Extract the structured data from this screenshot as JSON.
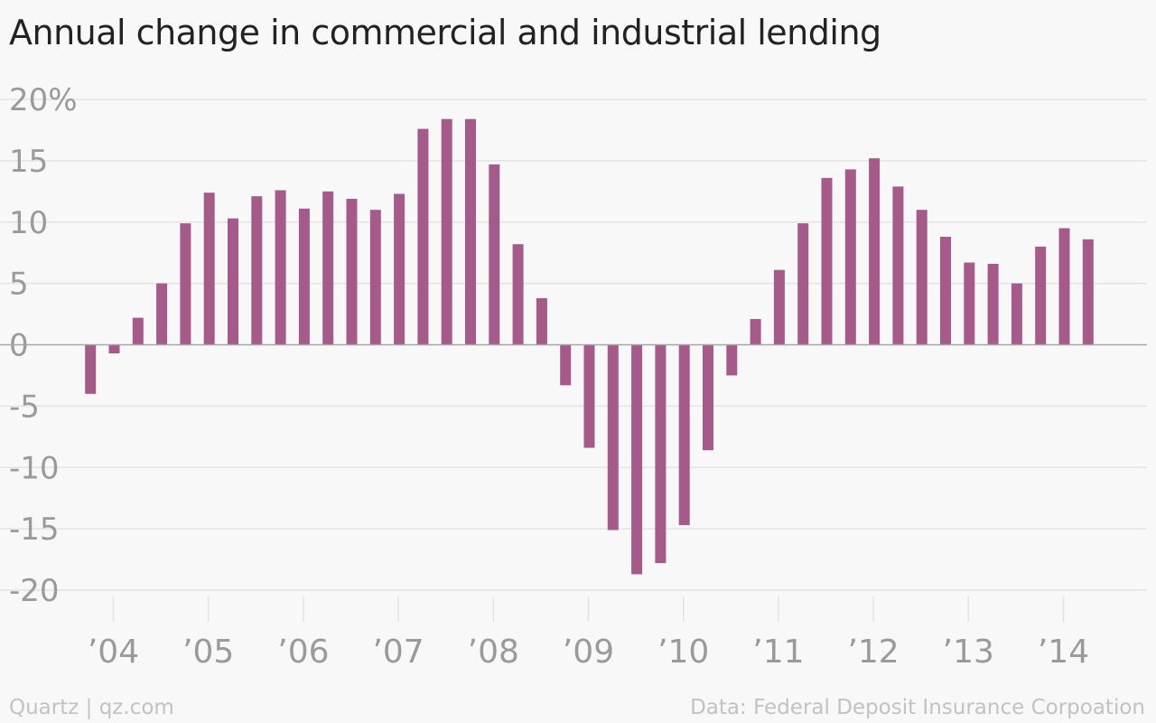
{
  "title": "Annual change in commercial and industrial lending",
  "footer": {
    "credit": "Quartz | qz.com",
    "source": "Data: Federal Deposit Insurance Corpoation"
  },
  "colors": {
    "bar": "#a55a8a",
    "grid": "#e3e3e3",
    "zero_line": "#a6a6a6",
    "tick_text": "#9a9a9a",
    "background": "#f8f8f8"
  },
  "chart_data": {
    "type": "bar",
    "title": "Annual change in commercial and industrial lending",
    "xlabel": "",
    "ylabel": "",
    "ylim": [
      -20,
      20
    ],
    "yticks": [
      20,
      15,
      10,
      5,
      0,
      -5,
      -10,
      -15,
      -20
    ],
    "ytick_labels": [
      "20%",
      "15",
      "10",
      "5",
      "0",
      "-5",
      "-10",
      "-15",
      "-20"
    ],
    "xticks": [
      "’04",
      "’05",
      "’06",
      "’07",
      "’08",
      "’09",
      "’10",
      "’11",
      "’12",
      "’13",
      "’14"
    ],
    "grid": true,
    "values_start": "2004 Q1",
    "frequency": "quarterly",
    "values": [
      -4.0,
      -0.7,
      2.2,
      5.0,
      9.9,
      12.4,
      10.3,
      12.1,
      12.6,
      11.1,
      12.5,
      11.9,
      11.0,
      12.3,
      17.6,
      18.4,
      18.4,
      14.7,
      8.2,
      3.8,
      -3.3,
      -8.4,
      -15.1,
      -18.7,
      -17.8,
      -14.7,
      -8.6,
      -2.5,
      2.1,
      6.1,
      9.9,
      13.6,
      14.3,
      15.2,
      12.9,
      11.0,
      8.8,
      6.7,
      6.6,
      5.0,
      8.0,
      9.5,
      8.6
    ]
  }
}
